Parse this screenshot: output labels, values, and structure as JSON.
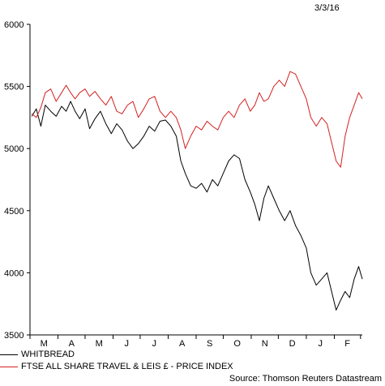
{
  "date_label": "3/3/16",
  "source_label": "Source: Thomson Reuters Datastream",
  "chart_data": {
    "type": "line",
    "title": "",
    "xlabel": "",
    "ylabel": "",
    "ylim": [
      3500,
      6000
    ],
    "yticks": [
      3500,
      4000,
      4500,
      5000,
      5500,
      6000
    ],
    "xlim": [
      "2015-03-01",
      "2016-03-03"
    ],
    "month_ticks": [
      "2015-03-01",
      "2015-04-01",
      "2015-05-01",
      "2015-06-01",
      "2015-07-01",
      "2015-08-01",
      "2015-09-01",
      "2015-10-01",
      "2015-11-01",
      "2015-12-01",
      "2016-01-01",
      "2016-02-01",
      "2016-03-01"
    ],
    "month_labels": [
      "M",
      "A",
      "M",
      "J",
      "J",
      "A",
      "S",
      "O",
      "N",
      "D",
      "J",
      "F"
    ],
    "grid": false,
    "legend_position": "bottom-left",
    "series": [
      {
        "name": "WHITBREAD",
        "color": "#000000",
        "points": [
          [
            "2015-03-03",
            5260
          ],
          [
            "2015-03-08",
            5320
          ],
          [
            "2015-03-13",
            5180
          ],
          [
            "2015-03-18",
            5350
          ],
          [
            "2015-03-24",
            5300
          ],
          [
            "2015-03-30",
            5260
          ],
          [
            "2015-04-05",
            5340
          ],
          [
            "2015-04-10",
            5300
          ],
          [
            "2015-04-15",
            5380
          ],
          [
            "2015-04-20",
            5300
          ],
          [
            "2015-04-25",
            5240
          ],
          [
            "2015-05-01",
            5320
          ],
          [
            "2015-05-06",
            5160
          ],
          [
            "2015-05-12",
            5240
          ],
          [
            "2015-05-18",
            5300
          ],
          [
            "2015-05-24",
            5200
          ],
          [
            "2015-05-30",
            5120
          ],
          [
            "2015-06-05",
            5200
          ],
          [
            "2015-06-11",
            5150
          ],
          [
            "2015-06-17",
            5060
          ],
          [
            "2015-06-23",
            5000
          ],
          [
            "2015-06-29",
            5040
          ],
          [
            "2015-07-05",
            5100
          ],
          [
            "2015-07-11",
            5180
          ],
          [
            "2015-07-17",
            5140
          ],
          [
            "2015-07-23",
            5220
          ],
          [
            "2015-07-29",
            5230
          ],
          [
            "2015-08-04",
            5180
          ],
          [
            "2015-08-10",
            5100
          ],
          [
            "2015-08-15",
            4900
          ],
          [
            "2015-08-20",
            4800
          ],
          [
            "2015-08-26",
            4700
          ],
          [
            "2015-09-01",
            4680
          ],
          [
            "2015-09-07",
            4720
          ],
          [
            "2015-09-13",
            4650
          ],
          [
            "2015-09-19",
            4750
          ],
          [
            "2015-09-25",
            4700
          ],
          [
            "2015-10-01",
            4800
          ],
          [
            "2015-10-07",
            4900
          ],
          [
            "2015-10-13",
            4950
          ],
          [
            "2015-10-19",
            4920
          ],
          [
            "2015-10-25",
            4750
          ],
          [
            "2015-10-31",
            4650
          ],
          [
            "2015-11-05",
            4550
          ],
          [
            "2015-11-10",
            4420
          ],
          [
            "2015-11-15",
            4600
          ],
          [
            "2015-11-20",
            4700
          ],
          [
            "2015-11-26",
            4600
          ],
          [
            "2015-12-02",
            4500
          ],
          [
            "2015-12-08",
            4420
          ],
          [
            "2015-12-14",
            4500
          ],
          [
            "2015-12-20",
            4380
          ],
          [
            "2015-12-26",
            4300
          ],
          [
            "2016-01-01",
            4200
          ],
          [
            "2016-01-06",
            4000
          ],
          [
            "2016-01-12",
            3900
          ],
          [
            "2016-01-18",
            3950
          ],
          [
            "2016-01-24",
            4000
          ],
          [
            "2016-01-29",
            3850
          ],
          [
            "2016-02-03",
            3700
          ],
          [
            "2016-02-08",
            3780
          ],
          [
            "2016-02-13",
            3850
          ],
          [
            "2016-02-18",
            3800
          ],
          [
            "2016-02-23",
            3950
          ],
          [
            "2016-02-28",
            4050
          ],
          [
            "2016-03-03",
            3950
          ]
        ]
      },
      {
        "name": "FTSE ALL SHARE TRAVEL & LEIS £ - PRICE INDEX",
        "color": "#d42020",
        "points": [
          [
            "2015-03-03",
            5280
          ],
          [
            "2015-03-08",
            5250
          ],
          [
            "2015-03-13",
            5330
          ],
          [
            "2015-03-18",
            5450
          ],
          [
            "2015-03-24",
            5480
          ],
          [
            "2015-03-30",
            5380
          ],
          [
            "2015-04-05",
            5450
          ],
          [
            "2015-04-10",
            5510
          ],
          [
            "2015-04-15",
            5450
          ],
          [
            "2015-04-20",
            5400
          ],
          [
            "2015-04-25",
            5450
          ],
          [
            "2015-05-01",
            5480
          ],
          [
            "2015-05-06",
            5420
          ],
          [
            "2015-05-12",
            5460
          ],
          [
            "2015-05-18",
            5400
          ],
          [
            "2015-05-24",
            5350
          ],
          [
            "2015-05-30",
            5420
          ],
          [
            "2015-06-05",
            5300
          ],
          [
            "2015-06-11",
            5280
          ],
          [
            "2015-06-17",
            5350
          ],
          [
            "2015-06-23",
            5380
          ],
          [
            "2015-06-29",
            5250
          ],
          [
            "2015-07-05",
            5320
          ],
          [
            "2015-07-11",
            5400
          ],
          [
            "2015-07-17",
            5420
          ],
          [
            "2015-07-23",
            5300
          ],
          [
            "2015-07-29",
            5250
          ],
          [
            "2015-08-04",
            5300
          ],
          [
            "2015-08-10",
            5250
          ],
          [
            "2015-08-15",
            5150
          ],
          [
            "2015-08-20",
            5000
          ],
          [
            "2015-08-26",
            5100
          ],
          [
            "2015-09-01",
            5180
          ],
          [
            "2015-09-07",
            5150
          ],
          [
            "2015-09-13",
            5220
          ],
          [
            "2015-09-19",
            5180
          ],
          [
            "2015-09-25",
            5150
          ],
          [
            "2015-10-01",
            5250
          ],
          [
            "2015-10-07",
            5300
          ],
          [
            "2015-10-13",
            5250
          ],
          [
            "2015-10-19",
            5350
          ],
          [
            "2015-10-25",
            5400
          ],
          [
            "2015-10-31",
            5300
          ],
          [
            "2015-11-05",
            5350
          ],
          [
            "2015-11-10",
            5450
          ],
          [
            "2015-11-15",
            5380
          ],
          [
            "2015-11-20",
            5400
          ],
          [
            "2015-11-26",
            5500
          ],
          [
            "2015-12-02",
            5550
          ],
          [
            "2015-12-08",
            5500
          ],
          [
            "2015-12-14",
            5620
          ],
          [
            "2015-12-20",
            5600
          ],
          [
            "2015-12-26",
            5500
          ],
          [
            "2016-01-01",
            5400
          ],
          [
            "2016-01-06",
            5250
          ],
          [
            "2016-01-12",
            5180
          ],
          [
            "2016-01-18",
            5250
          ],
          [
            "2016-01-24",
            5200
          ],
          [
            "2016-01-29",
            5050
          ],
          [
            "2016-02-03",
            4900
          ],
          [
            "2016-02-08",
            4850
          ],
          [
            "2016-02-13",
            5100
          ],
          [
            "2016-02-18",
            5250
          ],
          [
            "2016-02-23",
            5350
          ],
          [
            "2016-02-28",
            5450
          ],
          [
            "2016-03-03",
            5400
          ]
        ]
      }
    ]
  }
}
